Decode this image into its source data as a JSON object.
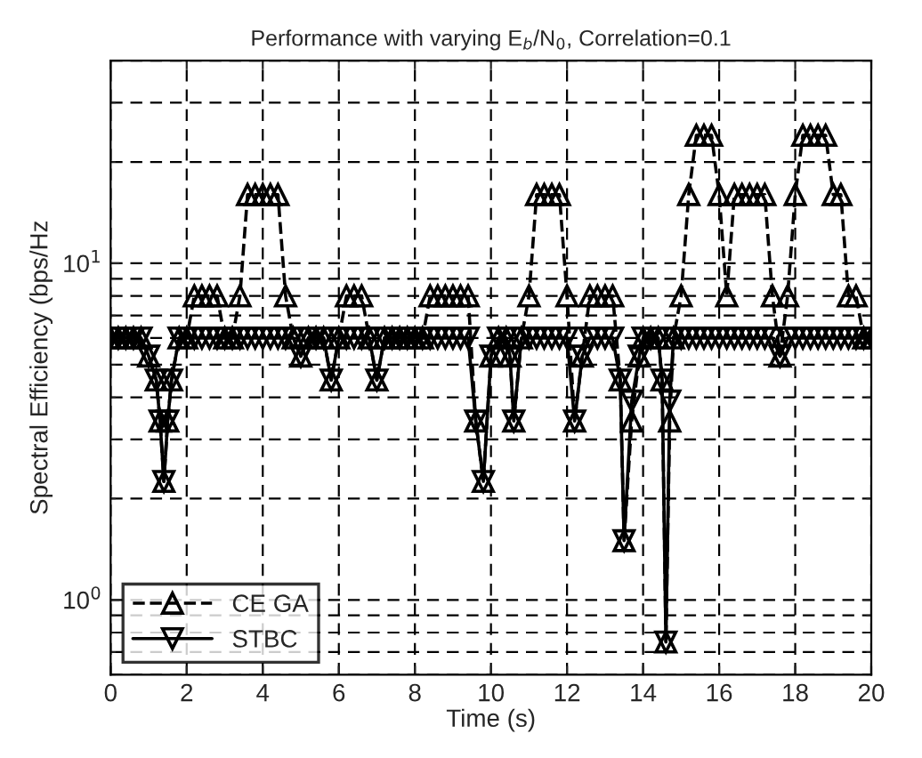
{
  "chart_data": {
    "type": "line",
    "title": "Performance with varying E$_{b}$/N$_{0}$, Correlation=0.1",
    "xlabel": "Time (s)",
    "ylabel": "Spectral Efficiency (bps/Hz",
    "log": "y",
    "grid": true,
    "legend": "bottom left",
    "x": [
      0,
      0.2,
      0.4,
      0.6,
      0.8,
      1,
      1.2,
      1.3,
      1.4,
      1.5,
      1.6,
      1.8,
      2,
      2.2,
      2.4,
      2.6,
      2.8,
      3,
      3.2,
      3.4,
      3.6,
      3.8,
      4,
      4.2,
      4.4,
      4.6,
      4.8,
      5,
      5.2,
      5.4,
      5.6,
      5.8,
      6,
      6.2,
      6.4,
      6.6,
      6.8,
      7,
      7.2,
      7.4,
      7.6,
      7.8,
      8,
      8.2,
      8.4,
      8.6,
      8.8,
      9,
      9.2,
      9.4,
      9.6,
      9.8,
      10,
      10.2,
      10.4,
      10.5,
      10.6,
      10.8,
      11,
      11.2,
      11.4,
      11.6,
      11.8,
      12,
      12.2,
      12.4,
      12.6,
      12.8,
      13,
      13.2,
      13.4,
      13.5,
      13.7,
      13.9,
      14,
      14.2,
      14.4,
      14.5,
      14.6,
      14.7,
      14.8,
      15,
      15.2,
      15.4,
      15.6,
      15.8,
      16,
      16.2,
      16.4,
      16.6,
      16.8,
      17,
      17.2,
      17.4,
      17.6,
      17.8,
      18,
      18.2,
      18.4,
      18.6,
      18.8,
      19,
      19.2,
      19.4,
      19.6,
      19.8,
      20
    ],
    "series": [
      {
        "name": "CE GA",
        "color": "#000000",
        "line_style": "dashed",
        "marker": "triangle",
        "values": [
          6,
          6,
          6,
          6,
          6,
          5.3,
          4.5,
          3.4,
          2.25,
          3.4,
          4.5,
          6,
          6,
          8,
          8,
          8,
          8,
          6,
          6,
          8,
          16,
          16,
          16,
          16,
          16,
          8,
          6,
          5.3,
          6,
          6,
          6,
          4.5,
          6,
          8,
          8,
          8,
          6,
          4.5,
          6,
          6,
          6,
          6,
          6,
          6,
          8,
          8,
          8,
          8,
          8,
          8,
          3.4,
          2.25,
          5.3,
          6,
          6,
          5.3,
          3.4,
          6,
          8,
          16,
          16,
          16,
          16,
          8,
          3.4,
          5.3,
          8,
          8,
          8,
          8,
          4.5,
          1.5,
          3.4,
          5.3,
          6,
          6,
          6,
          4.5,
          0.75,
          3.4,
          6,
          8,
          16,
          24,
          24,
          24,
          16,
          8,
          16,
          16,
          16,
          16,
          16,
          8,
          5.3,
          8,
          16,
          24,
          24,
          24,
          24,
          16,
          16,
          8,
          8,
          6,
          6
        ]
      },
      {
        "name": "STBC",
        "color": "#000000",
        "line_style": "solid",
        "marker": "triangle_down",
        "values": [
          6,
          6,
          6,
          6,
          6,
          5.3,
          4.5,
          3.4,
          2.25,
          3.4,
          4.5,
          6,
          6,
          6,
          6,
          6,
          6,
          6,
          6,
          6,
          6,
          6,
          6,
          6,
          6,
          6,
          6,
          5.3,
          6,
          6,
          6,
          4.5,
          6,
          6,
          6,
          6,
          6,
          4.5,
          6,
          6,
          6,
          6,
          6,
          6,
          6,
          6,
          6,
          6,
          6,
          6,
          3.4,
          2.25,
          5.3,
          6,
          6,
          5.3,
          3.4,
          6,
          6,
          6,
          6,
          6,
          6,
          6,
          3.4,
          5.3,
          6,
          6,
          6,
          6,
          4.5,
          1.5,
          3.9,
          5.3,
          6,
          6,
          6,
          4.5,
          0.75,
          3.9,
          6,
          6,
          6,
          6,
          6,
          6,
          6,
          6,
          6,
          6,
          6,
          6,
          6,
          6,
          5.3,
          6,
          6,
          6,
          6,
          6,
          6,
          6,
          6,
          6,
          6,
          6,
          6
        ]
      }
    ],
    "xlim": [
      0,
      20
    ],
    "xticks": [
      0,
      2,
      4,
      6,
      8,
      10,
      12,
      14,
      16,
      18,
      20
    ],
    "ylim": [
      0.6,
      40
    ],
    "yticks": [
      {
        "value": 1,
        "label": "10$^{0}$"
      },
      {
        "value": 10,
        "label": "10$^{1}$"
      }
    ]
  }
}
